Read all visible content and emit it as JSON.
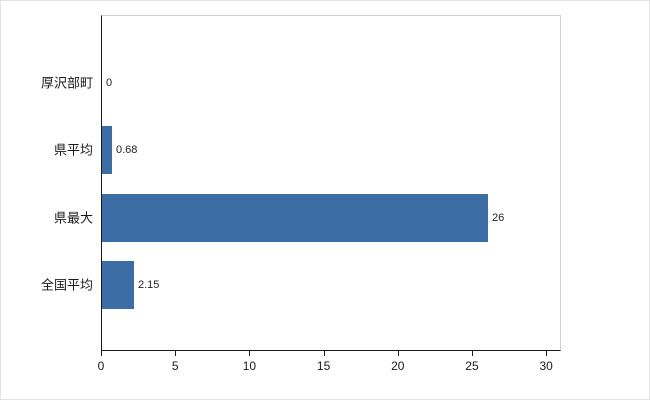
{
  "chart_data": {
    "type": "bar",
    "orientation": "horizontal",
    "title": "",
    "xlabel": "",
    "ylabel": "",
    "categories": [
      "厚沢部町",
      "県平均",
      "県最大",
      "全国平均"
    ],
    "values": [
      0,
      0.68,
      26,
      2.15
    ],
    "value_labels": [
      "0",
      "0.68",
      "26",
      "2.15"
    ],
    "xlim": [
      0,
      31
    ],
    "xticks": [
      0,
      5,
      10,
      15,
      20,
      25,
      30
    ],
    "bar_color": "#3c6ea5",
    "grid": false,
    "legend": false
  }
}
